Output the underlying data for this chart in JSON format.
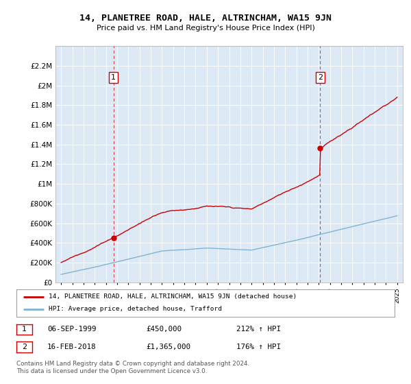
{
  "title": "14, PLANETREE ROAD, HALE, ALTRINCHAM, WA15 9JN",
  "subtitle": "Price paid vs. HM Land Registry's House Price Index (HPI)",
  "legend_line1": "14, PLANETREE ROAD, HALE, ALTRINCHAM, WA15 9JN (detached house)",
  "legend_line2": "HPI: Average price, detached house, Trafford",
  "annotation1_date": "06-SEP-1999",
  "annotation1_price": "£450,000",
  "annotation1_hpi": "212% ↑ HPI",
  "annotation2_date": "16-FEB-2018",
  "annotation2_price": "£1,365,000",
  "annotation2_hpi": "176% ↑ HPI",
  "footer": "Contains HM Land Registry data © Crown copyright and database right 2024.\nThis data is licensed under the Open Government Licence v3.0.",
  "sale1_year": 1999.68,
  "sale1_value": 450000,
  "sale2_year": 2018.12,
  "sale2_value": 1365000,
  "red_color": "#cc0000",
  "blue_color": "#7fb3d3",
  "background_color": "#dde8f5",
  "ylim_min": 0,
  "ylim_max": 2400000,
  "xlim_min": 1994.5,
  "xlim_max": 2025.5
}
